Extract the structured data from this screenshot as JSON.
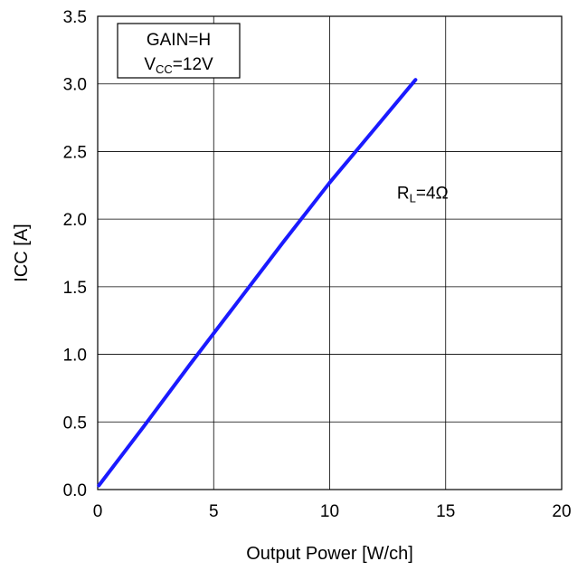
{
  "chart_data": {
    "type": "line",
    "title": "",
    "xlabel": "Output Power [W/ch]",
    "ylabel": "ICC [A]",
    "xlim": [
      0,
      20
    ],
    "ylim": [
      0,
      3.5
    ],
    "x_ticks": [
      "0",
      "5",
      "10",
      "15",
      "20"
    ],
    "y_ticks": [
      "0.0",
      "0.5",
      "1.0",
      "1.5",
      "2.0",
      "2.5",
      "3.0",
      "3.5"
    ],
    "grid": true,
    "legend_box": {
      "line1": "GAIN=H",
      "line2_main": "V",
      "line2_sub": "CC",
      "line2_rest": "=12V"
    },
    "series": [
      {
        "name": "RL=4Ω",
        "label_main": "R",
        "label_sub": "L",
        "label_rest": "=4Ω",
        "color": "#1a1aff",
        "x": [
          0.05,
          2,
          4,
          6,
          8,
          10,
          12,
          13.7
        ],
        "y": [
          0.03,
          0.47,
          0.93,
          1.38,
          1.83,
          2.27,
          2.68,
          3.03
        ]
      }
    ]
  }
}
